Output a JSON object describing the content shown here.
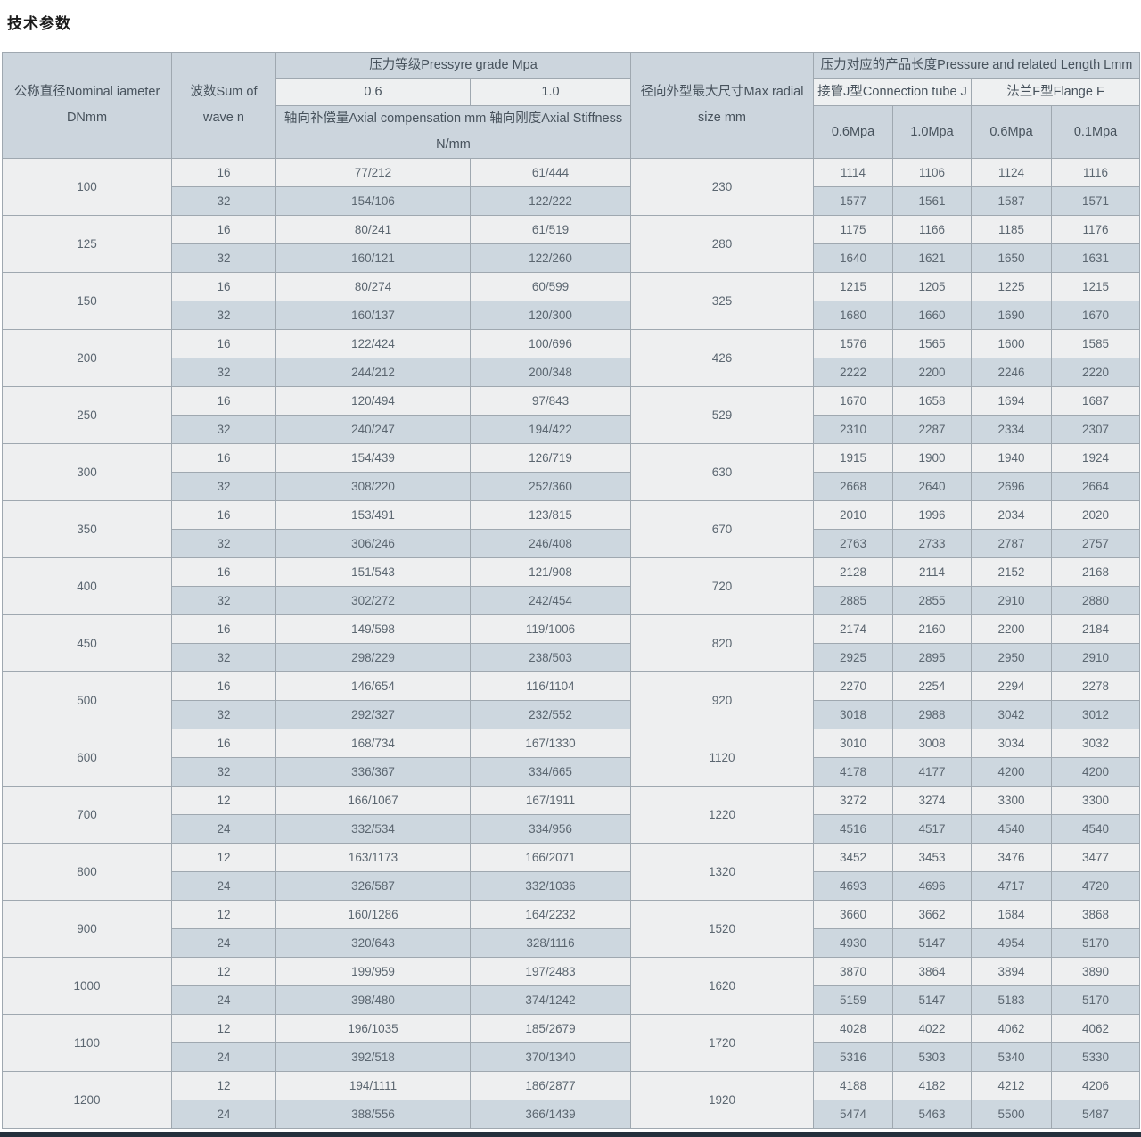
{
  "page_title": "技术参数",
  "colors": {
    "header_bg": "#ccd5dd",
    "subheader_bg": "#eef0f1",
    "row_light_bg": "#eeeff0",
    "row_dark_bg": "#cdd7df",
    "border": "#9fa8b0",
    "text": "#5b6670",
    "bottom_edge": "#24303c"
  },
  "table": {
    "header": {
      "nominal_diameter": "公称直径Nominal iameter DNmm",
      "wave_count": "波数Sum of wave n",
      "pressure_grade": "压力等级Pressyre grade Mpa",
      "grade_06": "0.6",
      "grade_10": "1.0",
      "axial_label": "轴向补偿量Axial compensation mm 轴向刚度Axial Stiffness N/mm",
      "max_radial": "径向外型最大尺寸Max radial size mm",
      "length_group": "压力对应的产品长度Pressure and related Length Lmm",
      "connection_tube": "接管J型Connection tube J",
      "flange": "法兰F型Flange F",
      "sub_cols": [
        "0.6Mpa",
        "1.0Mpa",
        "0.6Mpa",
        "0.1Mpa"
      ]
    },
    "rows": [
      {
        "dn": "100",
        "radial": "230",
        "sub": [
          {
            "n": "16",
            "axial_06": "77/212",
            "axial_10": "61/444",
            "lengths": [
              "1114",
              "1106",
              "1124",
              "1116"
            ]
          },
          {
            "n": "32",
            "axial_06": "154/106",
            "axial_10": "122/222",
            "lengths": [
              "1577",
              "1561",
              "1587",
              "1571"
            ]
          }
        ]
      },
      {
        "dn": "125",
        "radial": "280",
        "sub": [
          {
            "n": "16",
            "axial_06": "80/241",
            "axial_10": "61/519",
            "lengths": [
              "1175",
              "1166",
              "1185",
              "1176"
            ]
          },
          {
            "n": "32",
            "axial_06": "160/121",
            "axial_10": "122/260",
            "lengths": [
              "1640",
              "1621",
              "1650",
              "1631"
            ]
          }
        ]
      },
      {
        "dn": "150",
        "radial": "325",
        "sub": [
          {
            "n": "16",
            "axial_06": "80/274",
            "axial_10": "60/599",
            "lengths": [
              "1215",
              "1205",
              "1225",
              "1215"
            ]
          },
          {
            "n": "32",
            "axial_06": "160/137",
            "axial_10": "120/300",
            "lengths": [
              "1680",
              "1660",
              "1690",
              "1670"
            ]
          }
        ]
      },
      {
        "dn": "200",
        "radial": "426",
        "sub": [
          {
            "n": "16",
            "axial_06": "122/424",
            "axial_10": "100/696",
            "lengths": [
              "1576",
              "1565",
              "1600",
              "1585"
            ]
          },
          {
            "n": "32",
            "axial_06": "244/212",
            "axial_10": "200/348",
            "lengths": [
              "2222",
              "2200",
              "2246",
              "2220"
            ]
          }
        ]
      },
      {
        "dn": "250",
        "radial": "529",
        "sub": [
          {
            "n": "16",
            "axial_06": "120/494",
            "axial_10": "97/843",
            "lengths": [
              "1670",
              "1658",
              "1694",
              "1687"
            ]
          },
          {
            "n": "32",
            "axial_06": "240/247",
            "axial_10": "194/422",
            "lengths": [
              "2310",
              "2287",
              "2334",
              "2307"
            ]
          }
        ]
      },
      {
        "dn": "300",
        "radial": "630",
        "sub": [
          {
            "n": "16",
            "axial_06": "154/439",
            "axial_10": "126/719",
            "lengths": [
              "1915",
              "1900",
              "1940",
              "1924"
            ]
          },
          {
            "n": "32",
            "axial_06": "308/220",
            "axial_10": "252/360",
            "lengths": [
              "2668",
              "2640",
              "2696",
              "2664"
            ]
          }
        ]
      },
      {
        "dn": "350",
        "radial": "670",
        "sub": [
          {
            "n": "16",
            "axial_06": "153/491",
            "axial_10": "123/815",
            "lengths": [
              "2010",
              "1996",
              "2034",
              "2020"
            ]
          },
          {
            "n": "32",
            "axial_06": "306/246",
            "axial_10": "246/408",
            "lengths": [
              "2763",
              "2733",
              "2787",
              "2757"
            ]
          }
        ]
      },
      {
        "dn": "400",
        "radial": "720",
        "sub": [
          {
            "n": "16",
            "axial_06": "151/543",
            "axial_10": "121/908",
            "lengths": [
              "2128",
              "2114",
              "2152",
              "2168"
            ]
          },
          {
            "n": "32",
            "axial_06": "302/272",
            "axial_10": "242/454",
            "lengths": [
              "2885",
              "2855",
              "2910",
              "2880"
            ]
          }
        ]
      },
      {
        "dn": "450",
        "radial": "820",
        "sub": [
          {
            "n": "16",
            "axial_06": "149/598",
            "axial_10": "119/1006",
            "lengths": [
              "2174",
              "2160",
              "2200",
              "2184"
            ]
          },
          {
            "n": "32",
            "axial_06": "298/229",
            "axial_10": "238/503",
            "lengths": [
              "2925",
              "2895",
              "2950",
              "2910"
            ]
          }
        ]
      },
      {
        "dn": "500",
        "radial": "920",
        "sub": [
          {
            "n": "16",
            "axial_06": "146/654",
            "axial_10": "116/1104",
            "lengths": [
              "2270",
              "2254",
              "2294",
              "2278"
            ]
          },
          {
            "n": "32",
            "axial_06": "292/327",
            "axial_10": "232/552",
            "lengths": [
              "3018",
              "2988",
              "3042",
              "3012"
            ]
          }
        ]
      },
      {
        "dn": "600",
        "radial": "1120",
        "sub": [
          {
            "n": "16",
            "axial_06": "168/734",
            "axial_10": "167/1330",
            "lengths": [
              "3010",
              "3008",
              "3034",
              "3032"
            ]
          },
          {
            "n": "32",
            "axial_06": "336/367",
            "axial_10": "334/665",
            "lengths": [
              "4178",
              "4177",
              "4200",
              "4200"
            ]
          }
        ]
      },
      {
        "dn": "700",
        "radial": "1220",
        "sub": [
          {
            "n": "12",
            "axial_06": "166/1067",
            "axial_10": "167/1911",
            "lengths": [
              "3272",
              "3274",
              "3300",
              "3300"
            ]
          },
          {
            "n": "24",
            "axial_06": "332/534",
            "axial_10": "334/956",
            "lengths": [
              "4516",
              "4517",
              "4540",
              "4540"
            ]
          }
        ]
      },
      {
        "dn": "800",
        "radial": "1320",
        "sub": [
          {
            "n": "12",
            "axial_06": "163/1173",
            "axial_10": "166/2071",
            "lengths": [
              "3452",
              "3453",
              "3476",
              "3477"
            ]
          },
          {
            "n": "24",
            "axial_06": "326/587",
            "axial_10": "332/1036",
            "lengths": [
              "4693",
              "4696",
              "4717",
              "4720"
            ]
          }
        ]
      },
      {
        "dn": "900",
        "radial": "1520",
        "sub": [
          {
            "n": "12",
            "axial_06": "160/1286",
            "axial_10": "164/2232",
            "lengths": [
              "3660",
              "3662",
              "1684",
              "3868"
            ]
          },
          {
            "n": "24",
            "axial_06": "320/643",
            "axial_10": "328/1116",
            "lengths": [
              "4930",
              "5147",
              "4954",
              "5170"
            ]
          }
        ]
      },
      {
        "dn": "1000",
        "radial": "1620",
        "sub": [
          {
            "n": "12",
            "axial_06": "199/959",
            "axial_10": "197/2483",
            "lengths": [
              "3870",
              "3864",
              "3894",
              "3890"
            ]
          },
          {
            "n": "24",
            "axial_06": "398/480",
            "axial_10": "374/1242",
            "lengths": [
              "5159",
              "5147",
              "5183",
              "5170"
            ]
          }
        ]
      },
      {
        "dn": "1100",
        "radial": "1720",
        "sub": [
          {
            "n": "12",
            "axial_06": "196/1035",
            "axial_10": "185/2679",
            "lengths": [
              "4028",
              "4022",
              "4062",
              "4062"
            ]
          },
          {
            "n": "24",
            "axial_06": "392/518",
            "axial_10": "370/1340",
            "lengths": [
              "5316",
              "5303",
              "5340",
              "5330"
            ]
          }
        ]
      },
      {
        "dn": "1200",
        "radial": "1920",
        "sub": [
          {
            "n": "12",
            "axial_06": "194/1111",
            "axial_10": "186/2877",
            "lengths": [
              "4188",
              "4182",
              "4212",
              "4206"
            ]
          },
          {
            "n": "24",
            "axial_06": "388/556",
            "axial_10": "366/1439",
            "lengths": [
              "5474",
              "5463",
              "5500",
              "5487"
            ]
          }
        ]
      }
    ]
  }
}
